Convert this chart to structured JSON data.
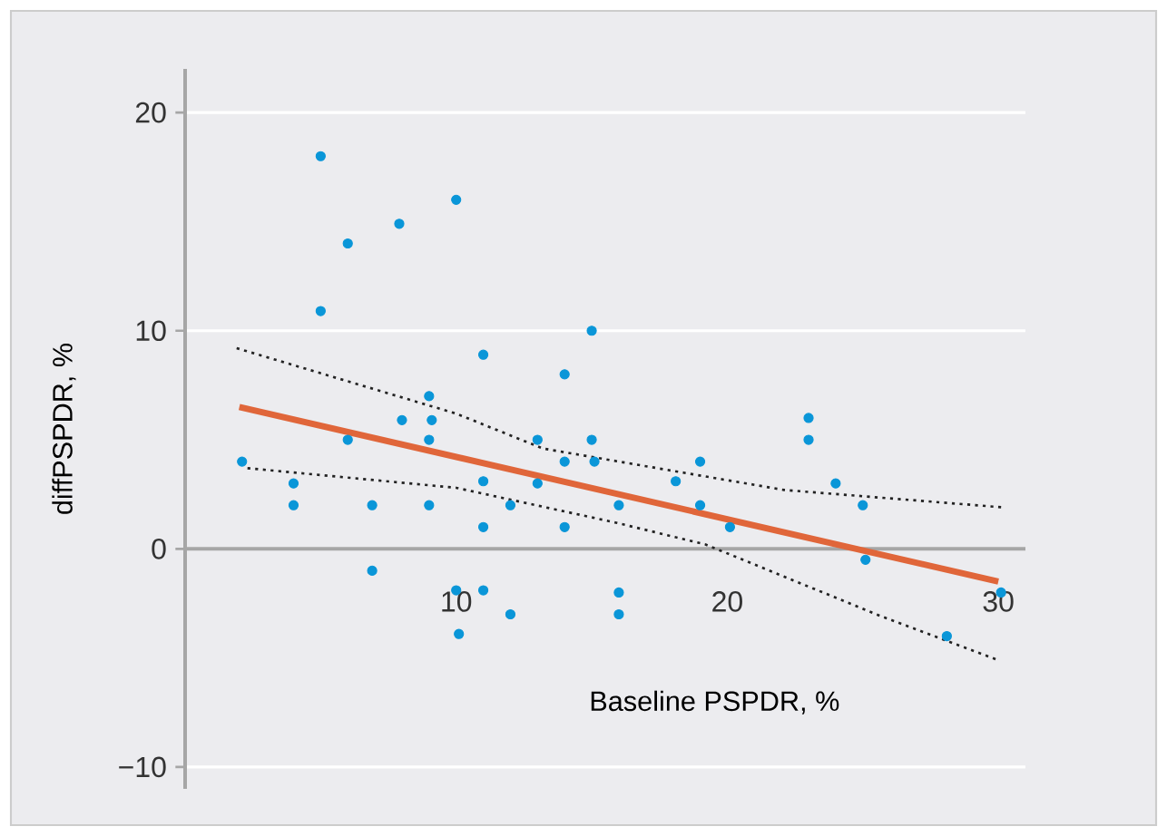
{
  "chart_data": {
    "type": "scatter",
    "xlabel": "Baseline PSPDR, %",
    "ylabel": "diffPSPDR, %",
    "xlim": [
      0,
      31
    ],
    "ylim": [
      -11,
      22
    ],
    "xticks": [
      10,
      20,
      30
    ],
    "yticks": [
      {
        "value": -10,
        "label": "−10"
      },
      0,
      10,
      20
    ],
    "grid": "y",
    "legend": false,
    "series": [
      {
        "marker": "circle",
        "color": "#0a96d8",
        "x": [
          2.1,
          4,
          4,
          5,
          5,
          6,
          6,
          6.9,
          6.9,
          7.9,
          8,
          9,
          9.1,
          9,
          9,
          10,
          10,
          10.1,
          11,
          11,
          11,
          11,
          12,
          12,
          13,
          13,
          14,
          14,
          14,
          15,
          15,
          15.1,
          16,
          16,
          16,
          18.1,
          19,
          19,
          20.1,
          23,
          23,
          24,
          25,
          25.1,
          28.1,
          30.1
        ],
        "values": [
          4,
          3,
          2,
          18,
          10.9,
          14,
          5,
          2,
          -1,
          14.9,
          5.9,
          7,
          5.9,
          5,
          2,
          16,
          -1.9,
          -3.9,
          8.9,
          3.1,
          1,
          -1.9,
          2,
          -3,
          5,
          3,
          8,
          4,
          1,
          10,
          5,
          4,
          2,
          -2,
          -3,
          3.1,
          4,
          2,
          1,
          6,
          5,
          3,
          2,
          -0.5,
          -4,
          -2
        ]
      },
      {
        "type": "line",
        "marker": "none",
        "line_style": "solid",
        "color": "#e0663a",
        "x": [
          2,
          30
        ],
        "values": [
          6.5,
          -1.5
        ]
      },
      {
        "type": "line",
        "marker": "none",
        "line_style": "dotted",
        "color": "#222222",
        "x": [
          1.9,
          10,
          13.2,
          22.1,
          30.2
        ],
        "values": [
          9.2,
          6.2,
          4.6,
          2.7,
          1.9
        ]
      },
      {
        "type": "line",
        "marker": "none",
        "line_style": "dotted",
        "color": "#222222",
        "x": [
          2.3,
          10,
          15.9,
          19.2,
          25.7,
          30
        ],
        "values": [
          3.7,
          2.8,
          1.2,
          0.2,
          -3.1,
          -5.1
        ]
      }
    ]
  }
}
